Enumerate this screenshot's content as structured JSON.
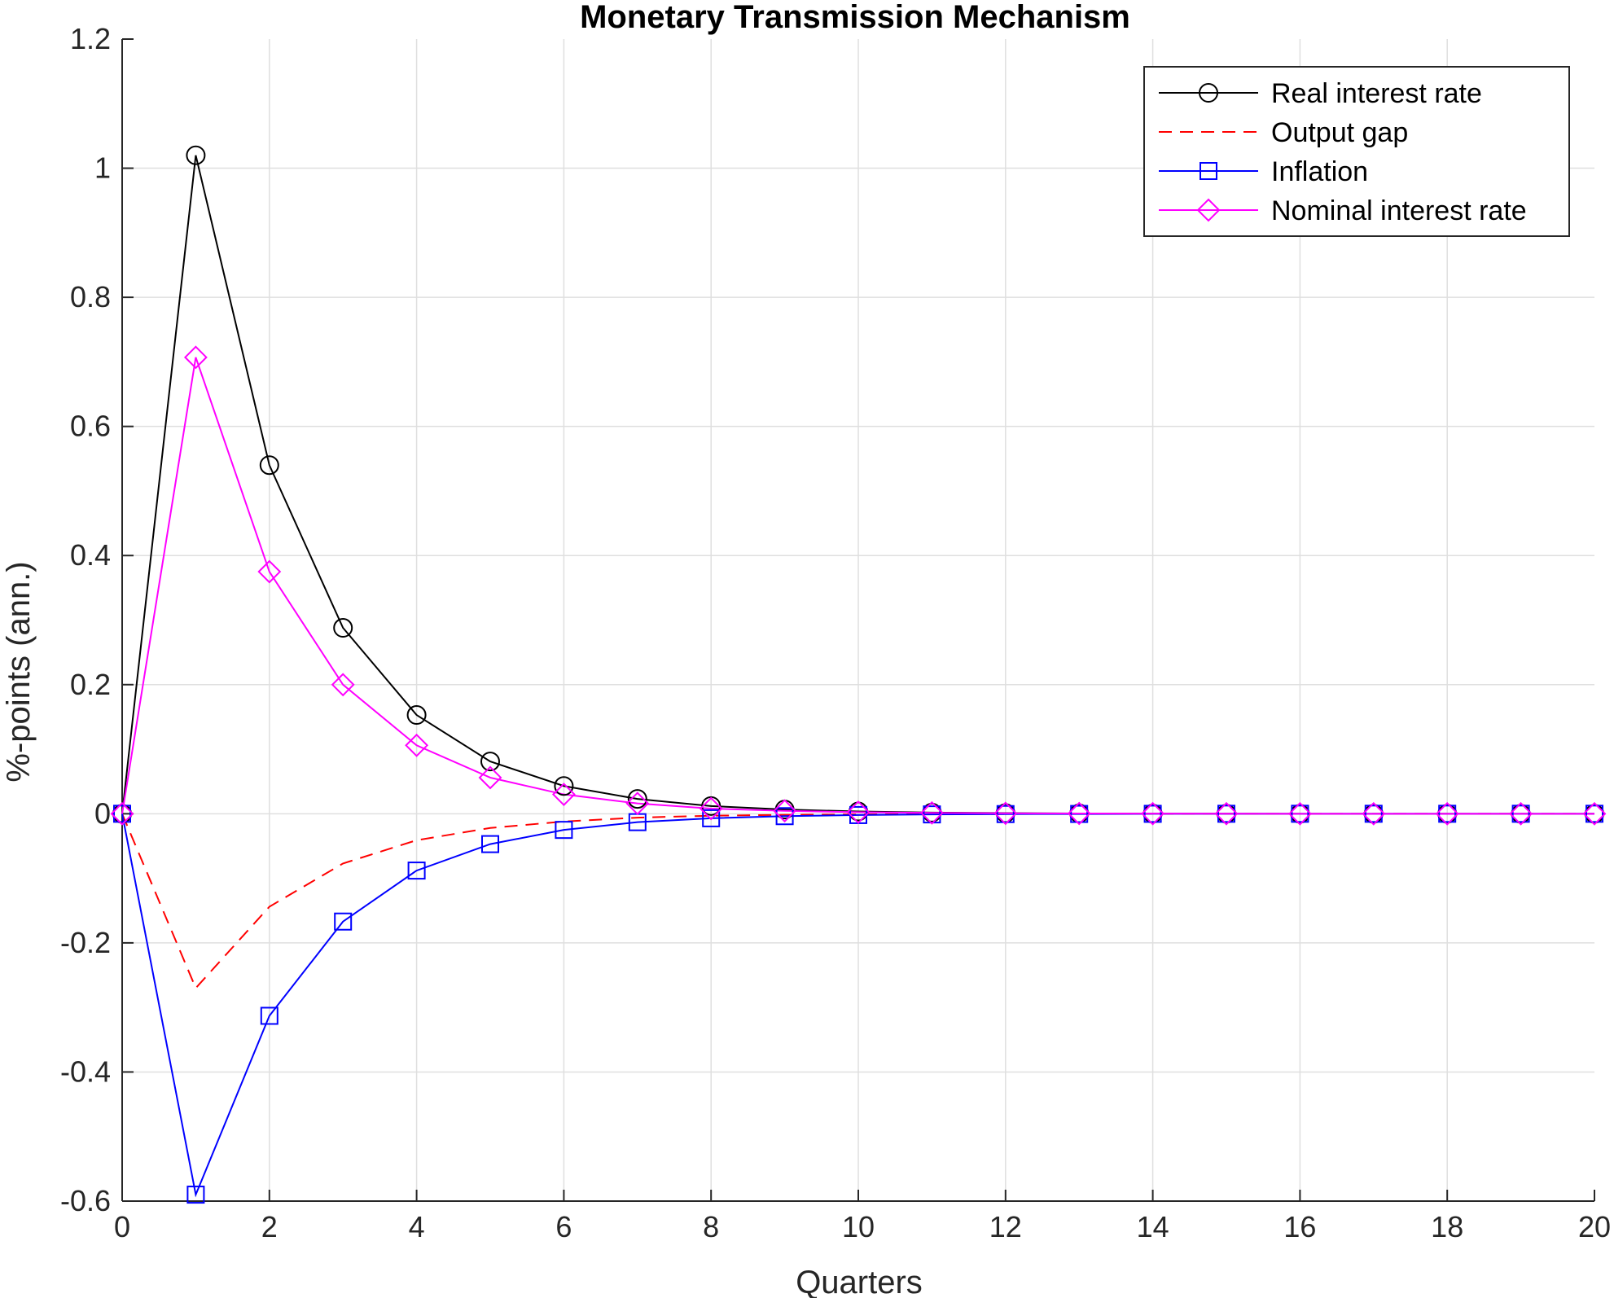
{
  "chart_data": {
    "type": "line",
    "title": "Monetary Transmission Mechanism",
    "xlabel": "Quarters",
    "ylabel": "%-points (ann.)",
    "xlim": [
      0,
      20
    ],
    "ylim": [
      -0.6,
      1.2
    ],
    "xticks": [
      0,
      2,
      4,
      6,
      8,
      10,
      12,
      14,
      16,
      18,
      20
    ],
    "xtick_labels": [
      "0",
      "2",
      "4",
      "6",
      "8",
      "10",
      "12",
      "14",
      "16",
      "18",
      "20"
    ],
    "yticks": [
      -0.6,
      -0.4,
      -0.2,
      0,
      0.2,
      0.4,
      0.6,
      0.8,
      1,
      1.2
    ],
    "ytick_labels": [
      "-0.6",
      "-0.4",
      "-0.2",
      "0",
      "0.2",
      "0.4",
      "0.6",
      "0.8",
      "1",
      "1.2"
    ],
    "grid": true,
    "legend_position": "top-right",
    "x": [
      0,
      1,
      2,
      3,
      4,
      5,
      6,
      7,
      8,
      9,
      10,
      11,
      12,
      13,
      14,
      15,
      16,
      17,
      18,
      19,
      20
    ],
    "series": [
      {
        "name": "Real interest rate",
        "color": "#000000",
        "line_style": "solid",
        "marker": "circle",
        "values": [
          0,
          1.02,
          0.54,
          0.288,
          0.153,
          0.081,
          0.043,
          0.023,
          0.012,
          0.0065,
          0.0035,
          0.0018,
          0.001,
          0.0005,
          0.0003,
          0.0001,
          0,
          0,
          0,
          0,
          0
        ]
      },
      {
        "name": "Output gap",
        "color": "#ff0000",
        "line_style": "dashed",
        "marker": "none",
        "values": [
          0,
          -0.27,
          -0.144,
          -0.077,
          -0.041,
          -0.022,
          -0.012,
          -0.006,
          -0.003,
          -0.0017,
          -0.0009,
          -0.0005,
          -0.0003,
          -0.0001,
          0,
          0,
          0,
          0,
          0,
          0,
          0
        ]
      },
      {
        "name": "Inflation",
        "color": "#0000ff",
        "line_style": "solid",
        "marker": "square",
        "values": [
          0,
          -0.59,
          -0.313,
          -0.167,
          -0.088,
          -0.047,
          -0.025,
          -0.013,
          -0.007,
          -0.0037,
          -0.002,
          -0.001,
          -0.0005,
          -0.0003,
          -0.0001,
          0,
          0,
          0,
          0,
          0,
          0
        ]
      },
      {
        "name": "Nominal interest rate",
        "color": "#ff00ff",
        "line_style": "solid",
        "marker": "diamond",
        "values": [
          0,
          0.707,
          0.375,
          0.2,
          0.106,
          0.056,
          0.03,
          0.016,
          0.008,
          0.0045,
          0.0024,
          0.0013,
          0.0007,
          0.0004,
          0.0002,
          0.0001,
          0,
          0,
          0,
          0,
          0
        ]
      }
    ]
  }
}
